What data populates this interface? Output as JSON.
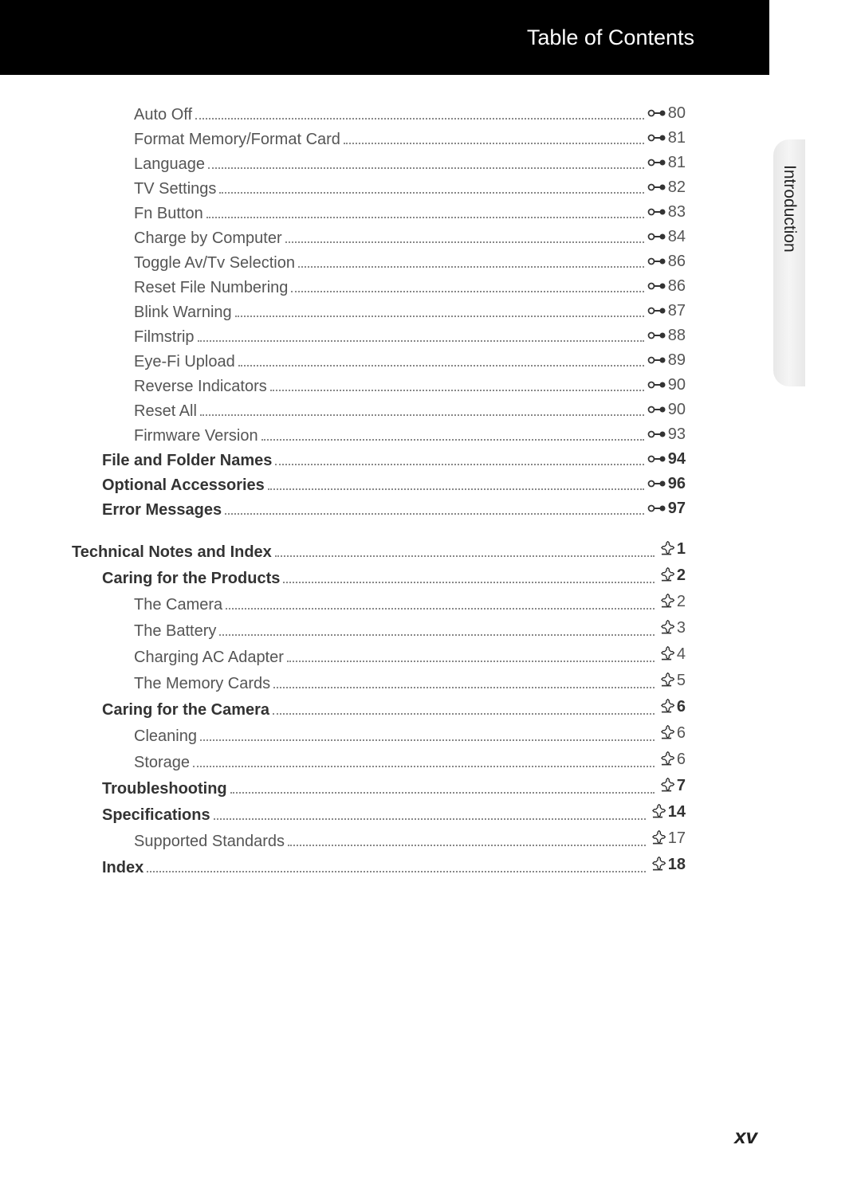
{
  "header": {
    "title": "Table of Contents"
  },
  "side_tab": {
    "label": "Introduction"
  },
  "page_number": "xv",
  "icons": {
    "ref": {
      "stroke": "#333333",
      "fill": "#333333"
    },
    "tech": {
      "stroke": "#333333",
      "fill": "#333333"
    }
  },
  "colors": {
    "header_bg": "#000000",
    "header_text": "#ffffff",
    "text": "#555555",
    "bold_text": "#333333",
    "dots": "#888888",
    "page_bg": "#ffffff"
  },
  "typography": {
    "header_fontsize": 27,
    "line_fontsize": 20,
    "page_number_fontsize": 26,
    "side_tab_fontsize": 21
  },
  "section1": [
    {
      "label": "Auto Off",
      "indent": 2,
      "bold": false,
      "icon": "ref",
      "page": "80"
    },
    {
      "label": "Format Memory/Format Card",
      "indent": 2,
      "bold": false,
      "icon": "ref",
      "page": "81"
    },
    {
      "label": "Language",
      "indent": 2,
      "bold": false,
      "icon": "ref",
      "page": "81"
    },
    {
      "label": "TV Settings",
      "indent": 2,
      "bold": false,
      "icon": "ref",
      "page": "82"
    },
    {
      "label": "Fn Button",
      "indent": 2,
      "bold": false,
      "icon": "ref",
      "page": "83"
    },
    {
      "label": "Charge by Computer",
      "indent": 2,
      "bold": false,
      "icon": "ref",
      "page": "84"
    },
    {
      "label": "Toggle Av/Tv Selection",
      "indent": 2,
      "bold": false,
      "icon": "ref",
      "page": "86"
    },
    {
      "label": "Reset File Numbering",
      "indent": 2,
      "bold": false,
      "icon": "ref",
      "page": "86"
    },
    {
      "label": "Blink Warning",
      "indent": 2,
      "bold": false,
      "icon": "ref",
      "page": "87"
    },
    {
      "label": "Filmstrip",
      "indent": 2,
      "bold": false,
      "icon": "ref",
      "page": "88"
    },
    {
      "label": "Eye-Fi Upload",
      "indent": 2,
      "bold": false,
      "icon": "ref",
      "page": "89"
    },
    {
      "label": "Reverse Indicators",
      "indent": 2,
      "bold": false,
      "icon": "ref",
      "page": "90"
    },
    {
      "label": "Reset All",
      "indent": 2,
      "bold": false,
      "icon": "ref",
      "page": "90"
    },
    {
      "label": "Firmware Version",
      "indent": 2,
      "bold": false,
      "icon": "ref",
      "page": "93"
    },
    {
      "label": "File and Folder Names",
      "indent": 1,
      "bold": true,
      "icon": "ref",
      "page": "94"
    },
    {
      "label": "Optional Accessories",
      "indent": 1,
      "bold": true,
      "icon": "ref",
      "page": "96"
    },
    {
      "label": "Error Messages",
      "indent": 1,
      "bold": true,
      "icon": "ref",
      "page": "97"
    }
  ],
  "section2": [
    {
      "label": "Technical Notes and Index",
      "indent": 0,
      "bold": true,
      "icon": "tech",
      "page": "1"
    },
    {
      "label": "Caring for the Products",
      "indent": 1,
      "bold": true,
      "icon": "tech",
      "page": "2"
    },
    {
      "label": "The Camera",
      "indent": 2,
      "bold": false,
      "icon": "tech",
      "page": "2"
    },
    {
      "label": "The Battery",
      "indent": 2,
      "bold": false,
      "icon": "tech",
      "page": "3"
    },
    {
      "label": "Charging AC Adapter",
      "indent": 2,
      "bold": false,
      "icon": "tech",
      "page": "4"
    },
    {
      "label": "The Memory Cards",
      "indent": 2,
      "bold": false,
      "icon": "tech",
      "page": "5"
    },
    {
      "label": "Caring for the Camera",
      "indent": 1,
      "bold": true,
      "icon": "tech",
      "page": "6"
    },
    {
      "label": "Cleaning",
      "indent": 2,
      "bold": false,
      "icon": "tech",
      "page": "6"
    },
    {
      "label": "Storage",
      "indent": 2,
      "bold": false,
      "icon": "tech",
      "page": "6"
    },
    {
      "label": "Troubleshooting",
      "indent": 1,
      "bold": true,
      "icon": "tech",
      "page": "7"
    },
    {
      "label": "Specifications",
      "indent": 1,
      "bold": true,
      "icon": "tech",
      "page": "14"
    },
    {
      "label": "Supported Standards",
      "indent": 2,
      "bold": false,
      "icon": "tech",
      "page": "17"
    },
    {
      "label": "Index",
      "indent": 1,
      "bold": true,
      "icon": "tech",
      "page": "18"
    }
  ]
}
